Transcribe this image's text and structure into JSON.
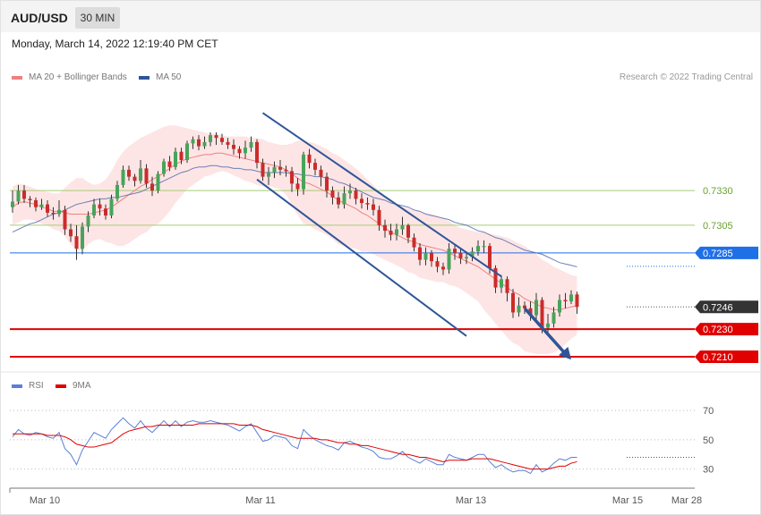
{
  "header": {
    "symbol": "AUD/USD",
    "timeframe": "30 MIN"
  },
  "date_label": "Monday, March 14, 2022 12:19:40 PM CET",
  "legend": {
    "ma20": {
      "label": "MA 20 + Bollinger Bands",
      "color": "#f08080"
    },
    "ma50": {
      "label": "MA 50",
      "color": "#2f5597"
    }
  },
  "credit": "Research © 2022 Trading Central",
  "rsi_legend": {
    "rsi": {
      "label": "RSI",
      "color": "#5b7fd6"
    },
    "ma9": {
      "label": "9MA",
      "color": "#e00000"
    }
  },
  "chart_data": [
    {
      "type": "candlestick",
      "title": "AUD/USD",
      "x_tick_labels": [
        "Mar 10",
        "Mar 11",
        "Mar 13",
        "Mar 15",
        "Mar 28"
      ],
      "ylim": [
        0.7201,
        0.7403
      ],
      "price_levels": [
        {
          "label": "0.7330",
          "value": 0.733,
          "kind": "resistance",
          "color": "#a9cc78"
        },
        {
          "label": "0.7305",
          "value": 0.7305,
          "kind": "resistance",
          "color": "#a9cc78"
        },
        {
          "label": "0.7285",
          "value": 0.7285,
          "kind": "pivot",
          "color": "#1f6fe6"
        },
        {
          "label": "0.7246",
          "value": 0.7246,
          "kind": "last",
          "color": "#333333"
        },
        {
          "label": "0.7230",
          "value": 0.723,
          "kind": "support",
          "color": "#e00000"
        },
        {
          "label": "0.7210",
          "value": 0.721,
          "kind": "support",
          "color": "#e00000"
        }
      ],
      "candles": {
        "bar_count": 98,
        "close": [
          0.7322,
          0.733,
          0.7324,
          0.7323,
          0.7318,
          0.732,
          0.7314,
          0.7313,
          0.7316,
          0.7302,
          0.7297,
          0.7288,
          0.7304,
          0.7312,
          0.732,
          0.7317,
          0.7312,
          0.7324,
          0.7334,
          0.7345,
          0.734,
          0.7337,
          0.7346,
          0.7335,
          0.733,
          0.7342,
          0.7351,
          0.7347,
          0.7358,
          0.7352,
          0.7364,
          0.7367,
          0.7362,
          0.7365,
          0.737,
          0.7368,
          0.7365,
          0.7363,
          0.736,
          0.7357,
          0.7361,
          0.7365,
          0.735,
          0.734,
          0.7343,
          0.7347,
          0.7345,
          0.7344,
          0.7335,
          0.7331,
          0.7356,
          0.735,
          0.7345,
          0.734,
          0.733,
          0.7325,
          0.732,
          0.7328,
          0.733,
          0.7324,
          0.7321,
          0.732,
          0.7316,
          0.7305,
          0.7301,
          0.7298,
          0.7302,
          0.7305,
          0.7296,
          0.7289,
          0.728,
          0.7285,
          0.7279,
          0.7275,
          0.7273,
          0.7288,
          0.7285,
          0.7281,
          0.7282,
          0.7286,
          0.729,
          0.729,
          0.7274,
          0.726,
          0.7266,
          0.7256,
          0.7242,
          0.7247,
          0.7245,
          0.724,
          0.7251,
          0.7231,
          0.7234,
          0.7242,
          0.7251,
          0.725,
          0.7255,
          0.7246
        ],
        "high": [
          0.733,
          0.7334,
          0.7334,
          0.7326,
          0.7325,
          0.7324,
          0.7323,
          0.7318,
          0.7323,
          0.7319,
          0.7306,
          0.7305,
          0.7307,
          0.7315,
          0.7324,
          0.7324,
          0.732,
          0.7327,
          0.7337,
          0.7348,
          0.7348,
          0.7342,
          0.7352,
          0.7349,
          0.734,
          0.7344,
          0.7353,
          0.7355,
          0.7361,
          0.7361,
          0.7366,
          0.7369,
          0.737,
          0.7369,
          0.7372,
          0.7372,
          0.7371,
          0.7368,
          0.7367,
          0.7362,
          0.7366,
          0.7369,
          0.7367,
          0.7353,
          0.7347,
          0.7351,
          0.7352,
          0.7348,
          0.7347,
          0.7339,
          0.7358,
          0.736,
          0.7353,
          0.7348,
          0.7343,
          0.7333,
          0.7329,
          0.7333,
          0.7335,
          0.7332,
          0.7328,
          0.7325,
          0.7324,
          0.7319,
          0.7309,
          0.7306,
          0.7306,
          0.7311,
          0.7306,
          0.7299,
          0.7292,
          0.7289,
          0.7287,
          0.7282,
          0.7278,
          0.7292,
          0.7291,
          0.7288,
          0.7286,
          0.7289,
          0.7294,
          0.7294,
          0.7292,
          0.7276,
          0.7269,
          0.7268,
          0.7259,
          0.7253,
          0.725,
          0.725,
          0.7256,
          0.7253,
          0.7241,
          0.7246,
          0.7255,
          0.7256,
          0.7258,
          0.7257
        ],
        "low": [
          0.7314,
          0.732,
          0.7321,
          0.7318,
          0.7315,
          0.7316,
          0.7311,
          0.7309,
          0.7311,
          0.7298,
          0.7293,
          0.728,
          0.7284,
          0.73,
          0.731,
          0.7312,
          0.7309,
          0.731,
          0.7322,
          0.7332,
          0.7337,
          0.7333,
          0.7335,
          0.7332,
          0.7326,
          0.7328,
          0.734,
          0.7344,
          0.7345,
          0.7349,
          0.735,
          0.736,
          0.7359,
          0.736,
          0.7362,
          0.7363,
          0.7363,
          0.736,
          0.7356,
          0.7353,
          0.7353,
          0.7358,
          0.7346,
          0.7337,
          0.7334,
          0.7339,
          0.7341,
          0.734,
          0.7329,
          0.7326,
          0.7327,
          0.7346,
          0.7341,
          0.7333,
          0.7325,
          0.732,
          0.7317,
          0.7317,
          0.7324,
          0.732,
          0.7317,
          0.7316,
          0.7312,
          0.7301,
          0.7296,
          0.7294,
          0.7294,
          0.7298,
          0.7292,
          0.7286,
          0.7276,
          0.7276,
          0.7275,
          0.7271,
          0.7269,
          0.727,
          0.728,
          0.7277,
          0.7277,
          0.7279,
          0.7283,
          0.7285,
          0.727,
          0.7256,
          0.7256,
          0.725,
          0.7238,
          0.7239,
          0.7241,
          0.7236,
          0.7236,
          0.7227,
          0.7227,
          0.7231,
          0.7239,
          0.7245,
          0.7248,
          0.7241
        ]
      },
      "ma20_bollinger": {
        "label": "MA 20 + Bollinger Bands",
        "middle": [
          0.7318,
          0.7321,
          0.7322,
          0.7321,
          0.732,
          0.7318,
          0.7317,
          0.7315,
          0.7315,
          0.7314,
          0.7313,
          0.7313,
          0.7313,
          0.7313,
          0.7314,
          0.7315,
          0.7316,
          0.7318,
          0.7321,
          0.7324,
          0.7327,
          0.733,
          0.7333,
          0.7335,
          0.7338,
          0.734,
          0.7343,
          0.7346,
          0.7349,
          0.7351,
          0.7353,
          0.7354,
          0.7355,
          0.7356,
          0.7356,
          0.7357,
          0.7357,
          0.7356,
          0.7355,
          0.7354,
          0.7353,
          0.7352,
          0.7351,
          0.735,
          0.7349,
          0.7348,
          0.7347,
          0.7345,
          0.7342,
          0.7339,
          0.7336,
          0.7335,
          0.7333,
          0.7331,
          0.7329,
          0.7326,
          0.7323,
          0.7321,
          0.7319,
          0.7317,
          0.7314,
          0.7312,
          0.7309,
          0.7306,
          0.7303,
          0.73,
          0.7298,
          0.7296,
          0.7294,
          0.7293,
          0.7291,
          0.729,
          0.7289,
          0.7288,
          0.7287,
          0.7285,
          0.7283,
          0.7281,
          0.7279,
          0.7277,
          0.7275,
          0.7272,
          0.7269,
          0.7266,
          0.7263,
          0.726,
          0.7257,
          0.7255,
          0.7252,
          0.725,
          0.7248,
          0.7246,
          0.7245,
          0.7244,
          0.7244,
          0.7245,
          0.7246,
          0.7247
        ],
        "upper": [
          0.7333,
          0.7335,
          0.7334,
          0.7333,
          0.7331,
          0.733,
          0.7329,
          0.7328,
          0.7328,
          0.7332,
          0.7336,
          0.7339,
          0.7339,
          0.7336,
          0.7334,
          0.7335,
          0.7338,
          0.7344,
          0.7352,
          0.7358,
          0.7362,
          0.7365,
          0.7368,
          0.737,
          0.7372,
          0.7374,
          0.7376,
          0.7377,
          0.7377,
          0.7376,
          0.7375,
          0.7374,
          0.7373,
          0.7372,
          0.7371,
          0.7371,
          0.737,
          0.7369,
          0.7369,
          0.7369,
          0.7369,
          0.7368,
          0.7368,
          0.7367,
          0.7365,
          0.7364,
          0.7363,
          0.7363,
          0.7364,
          0.7366,
          0.7366,
          0.7365,
          0.7364,
          0.7362,
          0.736,
          0.7357,
          0.7355,
          0.7352,
          0.7349,
          0.7346,
          0.7342,
          0.7338,
          0.7334,
          0.733,
          0.7326,
          0.7322,
          0.732,
          0.7318,
          0.7317,
          0.7316,
          0.7315,
          0.7314,
          0.7313,
          0.7312,
          0.731,
          0.7308,
          0.7305,
          0.7303,
          0.7302,
          0.7301,
          0.73,
          0.73,
          0.7299,
          0.7298,
          0.7297,
          0.7296,
          0.7294,
          0.7292,
          0.729,
          0.7287,
          0.7284,
          0.728,
          0.7278,
          0.7275,
          0.7273,
          0.7271,
          0.7269,
          0.7268
        ],
        "lower": [
          0.7305,
          0.7307,
          0.7309,
          0.7309,
          0.7308,
          0.7306,
          0.7305,
          0.7302,
          0.7301,
          0.7297,
          0.7291,
          0.7287,
          0.7287,
          0.7291,
          0.7294,
          0.7295,
          0.7293,
          0.7292,
          0.729,
          0.729,
          0.7292,
          0.7295,
          0.7298,
          0.73,
          0.7304,
          0.7306,
          0.731,
          0.7315,
          0.7321,
          0.7326,
          0.7331,
          0.7334,
          0.7337,
          0.734,
          0.7341,
          0.7343,
          0.7344,
          0.7343,
          0.7341,
          0.7339,
          0.7337,
          0.7336,
          0.7334,
          0.7333,
          0.7333,
          0.7332,
          0.7331,
          0.7327,
          0.732,
          0.7312,
          0.7306,
          0.7305,
          0.7302,
          0.73,
          0.7298,
          0.7295,
          0.7291,
          0.729,
          0.7289,
          0.7288,
          0.7286,
          0.7286,
          0.7284,
          0.7282,
          0.728,
          0.7278,
          0.7276,
          0.7274,
          0.7271,
          0.727,
          0.7267,
          0.7266,
          0.7265,
          0.7264,
          0.7264,
          0.7262,
          0.7261,
          0.7259,
          0.7256,
          0.7253,
          0.725,
          0.7244,
          0.7239,
          0.7234,
          0.7229,
          0.7224,
          0.722,
          0.7218,
          0.7214,
          0.7213,
          0.7212,
          0.7212,
          0.7212,
          0.7213,
          0.7215,
          0.7219,
          0.7223,
          0.7226
        ]
      },
      "ma50": {
        "label": "MA 50",
        "values": [
          0.73,
          0.7302,
          0.7304,
          0.7306,
          0.7307,
          0.7309,
          0.7311,
          0.7313,
          0.7314,
          0.7316,
          0.7318,
          0.732,
          0.7321,
          0.7322,
          0.7323,
          0.7324,
          0.7324,
          0.7325,
          0.7325,
          0.7326,
          0.7327,
          0.7328,
          0.7329,
          0.7331,
          0.7333,
          0.7335,
          0.7337,
          0.7339,
          0.7341,
          0.7343,
          0.7344,
          0.7346,
          0.7347,
          0.7347,
          0.7348,
          0.7348,
          0.7347,
          0.7347,
          0.7346,
          0.7346,
          0.7345,
          0.7345,
          0.7344,
          0.7343,
          0.7343,
          0.7343,
          0.7343,
          0.7343,
          0.7342,
          0.7342,
          0.7341,
          0.7341,
          0.734,
          0.734,
          0.7339,
          0.7338,
          0.7336,
          0.7335,
          0.7333,
          0.7331,
          0.7329,
          0.7327,
          0.7325,
          0.7324,
          0.7323,
          0.7321,
          0.732,
          0.7319,
          0.7318,
          0.7316,
          0.7315,
          0.7313,
          0.7312,
          0.7311,
          0.731,
          0.7309,
          0.7307,
          0.7306,
          0.7305,
          0.7303,
          0.7301,
          0.73,
          0.7298,
          0.7296,
          0.7295,
          0.7293,
          0.7291,
          0.7289,
          0.7287,
          0.7286,
          0.7285,
          0.7284,
          0.7282,
          0.728,
          0.7278,
          0.7277,
          0.7276,
          0.7275
        ]
      },
      "channel": {
        "upper": {
          "from": [
            43,
            0.7386
          ],
          "to": [
            84,
            0.7268
          ]
        },
        "lower": {
          "from": [
            42,
            0.7338
          ],
          "to": [
            78,
            0.7225
          ]
        }
      },
      "forecast_arrow": {
        "from": [
          88,
          0.7245
        ],
        "to": [
          96,
          0.7208
        ],
        "color": "#2f5597"
      }
    },
    {
      "type": "line",
      "title": "RSI",
      "ylim": [
        20,
        78
      ],
      "y_ticks": [
        30,
        50,
        70
      ],
      "series": [
        {
          "name": "RSI",
          "color": "#5b7fd6",
          "values": [
            52,
            57,
            54,
            53,
            55,
            54,
            52,
            51,
            55,
            44,
            40,
            33,
            43,
            49,
            55,
            53,
            51,
            57,
            61,
            65,
            61,
            58,
            63,
            58,
            55,
            59,
            63,
            59,
            63,
            59,
            62,
            63,
            62,
            62,
            63,
            62,
            61,
            60,
            58,
            56,
            59,
            61,
            55,
            49,
            50,
            53,
            52,
            51,
            46,
            44,
            57,
            53,
            50,
            48,
            46,
            45,
            43,
            48,
            49,
            47,
            45,
            44,
            42,
            38,
            37,
            37,
            39,
            42,
            38,
            36,
            34,
            37,
            35,
            33,
            33,
            40,
            38,
            37,
            36,
            38,
            40,
            40,
            35,
            31,
            33,
            30,
            28,
            29,
            29,
            27,
            33,
            28,
            30,
            34,
            37,
            36,
            38,
            38
          ]
        },
        {
          "name": "9MA",
          "color": "#e00000",
          "values": [
            54,
            54,
            54,
            54,
            54,
            54,
            53,
            53,
            53,
            52,
            50,
            47,
            46,
            45,
            45,
            46,
            47,
            48,
            51,
            54,
            56,
            57,
            58,
            59,
            59,
            60,
            60,
            60,
            60,
            60,
            60,
            60,
            61,
            61,
            61,
            61,
            61,
            61,
            61,
            60,
            60,
            60,
            59,
            57,
            56,
            55,
            54,
            53,
            52,
            51,
            51,
            51,
            51,
            50,
            50,
            49,
            48,
            48,
            47,
            47,
            46,
            46,
            45,
            44,
            43,
            42,
            41,
            40,
            40,
            39,
            38,
            38,
            37,
            36,
            35,
            36,
            36,
            36,
            36,
            37,
            37,
            37,
            37,
            36,
            35,
            34,
            33,
            32,
            31,
            30,
            30,
            30,
            30,
            31,
            32,
            32,
            34,
            35
          ]
        }
      ]
    }
  ]
}
